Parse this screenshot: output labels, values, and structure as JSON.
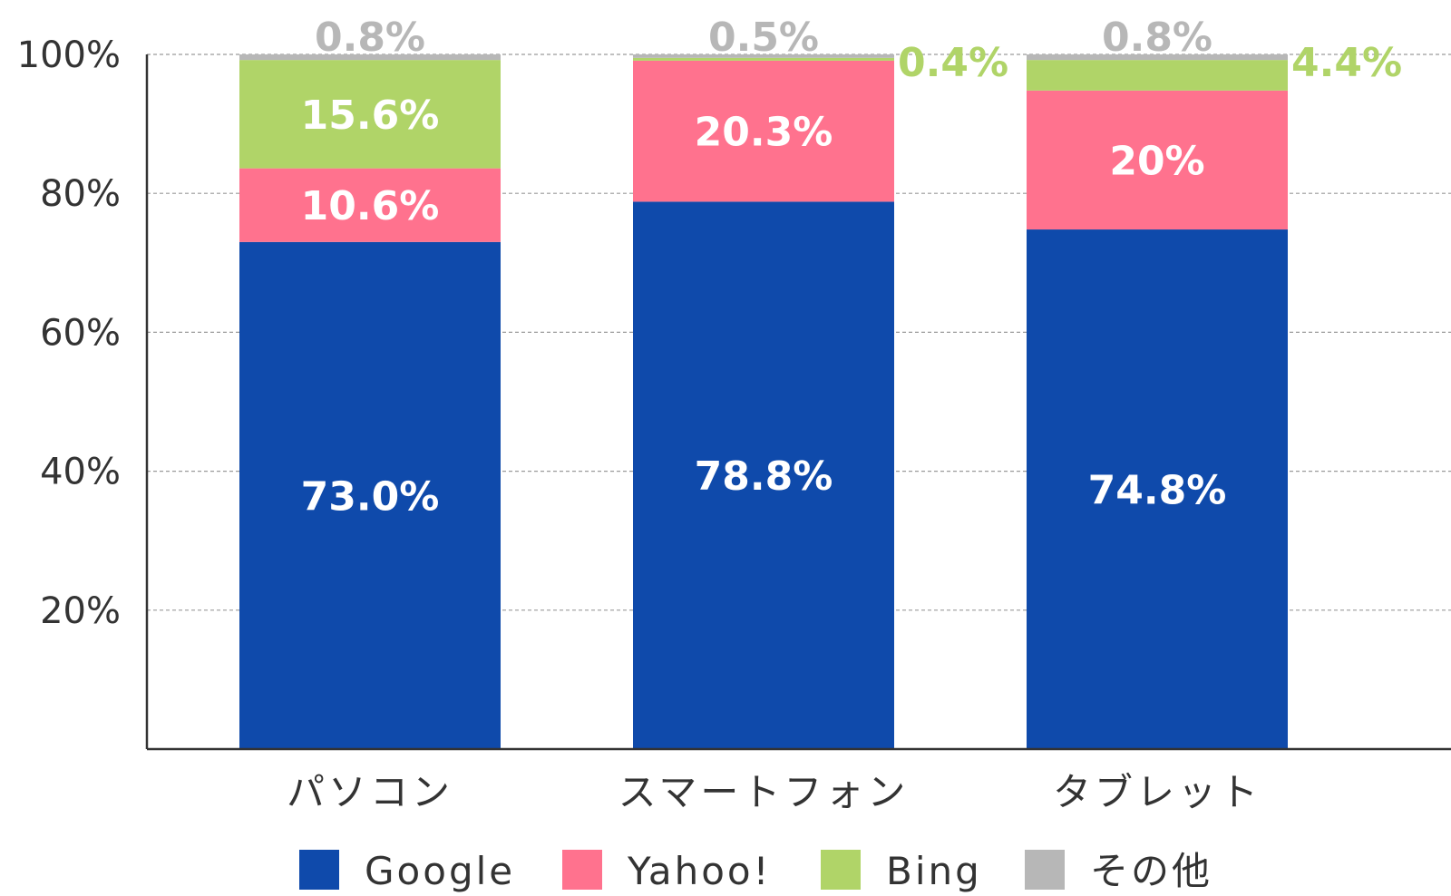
{
  "chart_data": {
    "type": "bar",
    "stacked": true,
    "categories": [
      "パソコン",
      "スマートフォン",
      "タブレット"
    ],
    "series": [
      {
        "name": "Google",
        "color": "#0f4aab",
        "values": [
          73.0,
          78.8,
          74.8
        ],
        "labels": [
          "73.0%",
          "78.8%",
          "74.8%"
        ]
      },
      {
        "name": "Yahoo!",
        "color": "#ff728e",
        "values": [
          10.6,
          20.3,
          20.0
        ],
        "labels": [
          "10.6%",
          "20.3%",
          "20%"
        ]
      },
      {
        "name": "Bing",
        "color": "#b0d468",
        "values": [
          15.6,
          0.4,
          4.4
        ],
        "labels": [
          "15.6%",
          "0.4%",
          "4.4%"
        ]
      },
      {
        "name": "その他",
        "color": "#b7b7b7",
        "values": [
          0.8,
          0.5,
          0.8
        ],
        "labels": [
          "0.8%",
          "0.5%",
          "0.8%"
        ]
      }
    ],
    "ylim": [
      0,
      100
    ],
    "yticks": [
      20,
      40,
      60,
      80,
      100
    ],
    "ytick_labels": [
      "20%",
      "40%",
      "60%",
      "80%",
      "100%"
    ],
    "grid": true,
    "legend_position": "bottom"
  }
}
